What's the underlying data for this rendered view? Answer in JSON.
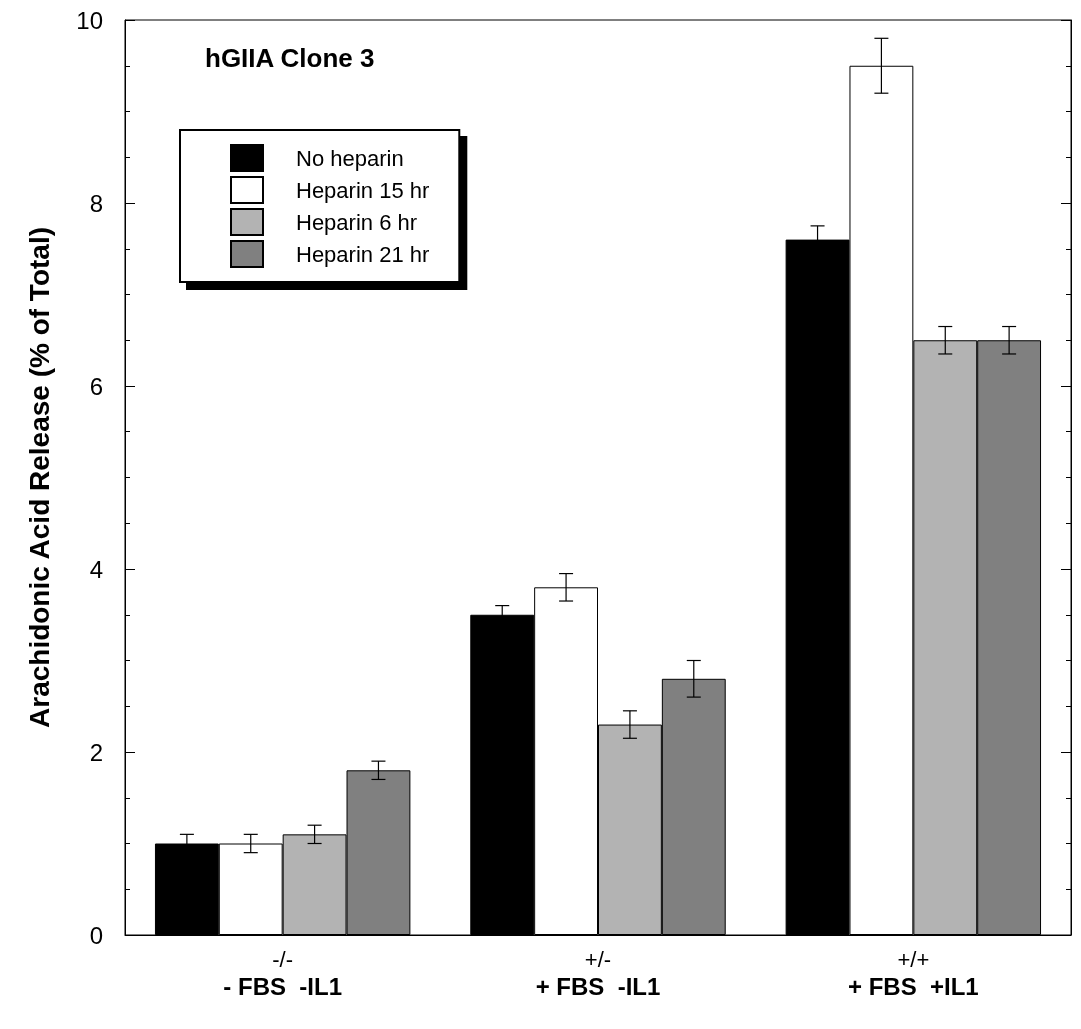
{
  "chart_data": {
    "type": "bar",
    "title": "hGIIA Clone 3",
    "ylabel": "Arachidonic Acid Release (% of Total)",
    "categories": [
      "-/-\n- FBS  -IL1",
      "+/-\n+ FBS  -IL1",
      "+/+\n+ FBS  +IL1"
    ],
    "series": [
      {
        "name": "No heparin",
        "color": "#000000",
        "values": [
          1.0,
          3.5,
          7.6
        ],
        "errors": [
          0.1,
          0.1,
          0.15
        ]
      },
      {
        "name": "Heparin 15 hr",
        "color": "#ffffff",
        "values": [
          1.0,
          3.8,
          9.5
        ],
        "errors": [
          0.1,
          0.15,
          0.3
        ]
      },
      {
        "name": "Heparin 6 hr",
        "color": "#b3b3b3",
        "values": [
          1.1,
          2.3,
          6.5
        ],
        "errors": [
          0.1,
          0.15,
          0.15
        ]
      },
      {
        "name": "Heparin 21 hr",
        "color": "#808080",
        "values": [
          1.8,
          2.8,
          6.5
        ],
        "errors": [
          0.1,
          0.2,
          0.15
        ]
      }
    ],
    "ylim": [
      0,
      10
    ],
    "yticks": [
      0,
      2,
      4,
      6,
      8,
      10
    ],
    "grid": false,
    "legend": "top left"
  }
}
